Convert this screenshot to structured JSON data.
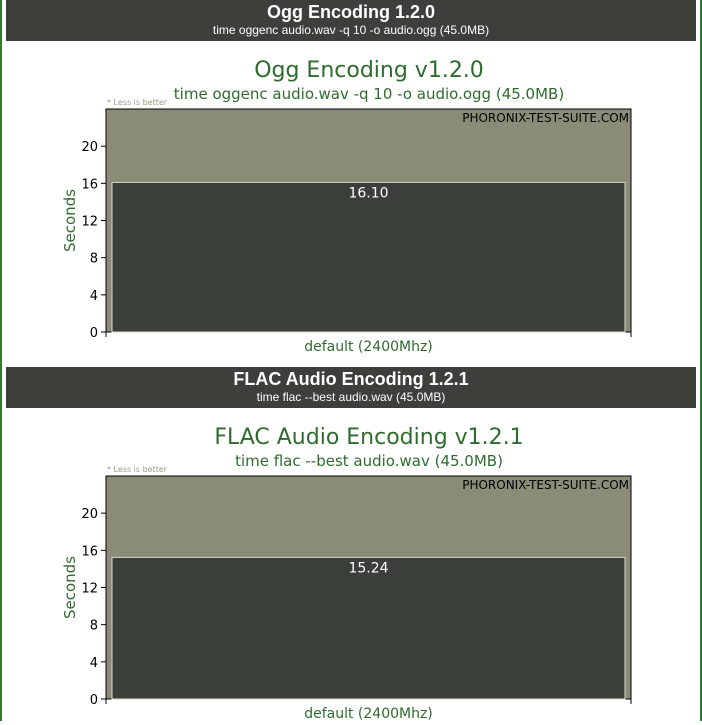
{
  "sections": [
    {
      "header_title": "Ogg Encoding 1.2.0",
      "header_sub": "time oggenc audio.wav -q 10 -o audio.ogg (45.0MB)"
    },
    {
      "header_title": "FLAC Audio Encoding 1.2.1",
      "header_sub": "time flac --best audio.wav (45.0MB)"
    }
  ],
  "colors": {
    "header_bg": "#3c3f3a",
    "plot_bg": "#8b8c78",
    "bar_fill": "#3b3f39",
    "bar_edge": "#d8d8c8",
    "title_green": "#2f6b2f",
    "frame_green": "#2f7a2f"
  },
  "chart_data": [
    {
      "type": "bar",
      "title": "Ogg Encoding v1.2.0",
      "subtitle": "time oggenc audio.wav -q 10 -o audio.ogg (45.0MB)",
      "note": "* Less is better",
      "watermark": "PHORONIX-TEST-SUITE.COM",
      "ylabel": "Seconds",
      "xlabel": "",
      "ylim": [
        0,
        24
      ],
      "yticks": [
        0,
        4,
        8,
        12,
        16,
        20
      ],
      "categories": [
        "default (2400Mhz)"
      ],
      "values": [
        16.1
      ],
      "value_labels": [
        "16.10"
      ]
    },
    {
      "type": "bar",
      "title": "FLAC Audio Encoding v1.2.1",
      "subtitle": "time flac --best audio.wav (45.0MB)",
      "note": "* Less is better",
      "watermark": "PHORONIX-TEST-SUITE.COM",
      "ylabel": "Seconds",
      "xlabel": "",
      "ylim": [
        0,
        24
      ],
      "yticks": [
        0,
        4,
        8,
        12,
        16,
        20
      ],
      "categories": [
        "default (2400Mhz)"
      ],
      "values": [
        15.24
      ],
      "value_labels": [
        "15.24"
      ]
    }
  ]
}
